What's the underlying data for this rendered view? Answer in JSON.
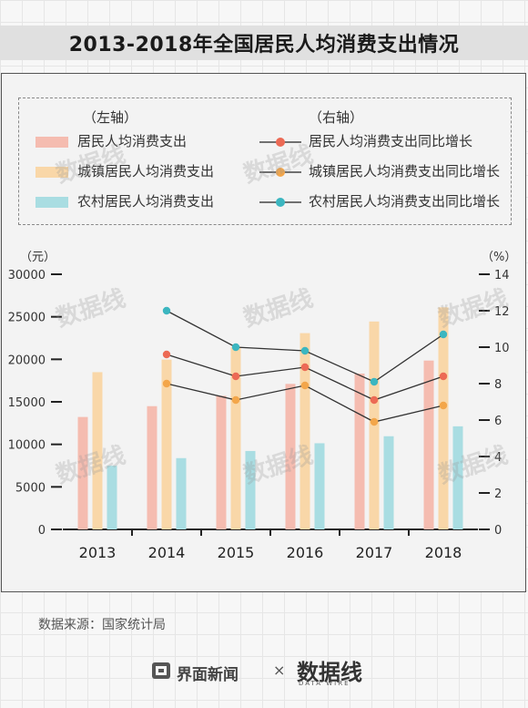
{
  "title": "2013-2018年全国居民人均消费支出情况",
  "legend": {
    "left_axis_label": "（左轴）",
    "right_axis_label": "（右轴）",
    "bar_items": [
      "居民人均消费支出",
      "城镇居民人均消费支出",
      "农村居民人均消费支出"
    ],
    "line_items": [
      "居民人均消费支出同比增长",
      "城镇居民人均消费支出同比增长",
      "农村居民人均消费支出同比增长"
    ]
  },
  "colors": {
    "bar_resident": "#f5bcb0",
    "bar_urban": "#f9d7a8",
    "bar_rural": "#a9dde2",
    "line_resident": "#ec6a55",
    "line_urban": "#f3a64a",
    "line_rural": "#3cb6c0"
  },
  "source": "数据来源：国家统计局",
  "footer": {
    "brand1": "界面新闻",
    "cross": "×",
    "brand2": "数据线",
    "brand2_sub": "DATA WIRE"
  },
  "watermark": "数据线",
  "chart_data": {
    "type": "bar",
    "categories": [
      "2013",
      "2014",
      "2015",
      "2016",
      "2017",
      "2018"
    ],
    "left_axis": {
      "unit_label": "（元）",
      "ylim": [
        0,
        30000
      ],
      "ticks": [
        0,
        5000,
        10000,
        15000,
        20000,
        25000,
        30000
      ]
    },
    "right_axis": {
      "unit_label": "（%）",
      "ylim": [
        0,
        14
      ],
      "ticks": [
        0,
        2,
        4,
        6,
        8,
        10,
        12,
        14
      ]
    },
    "series": [
      {
        "name": "居民人均消费支出",
        "axis": "left",
        "kind": "bar",
        "values": [
          13220,
          14491,
          15712,
          17111,
          18322,
          19853
        ]
      },
      {
        "name": "城镇居民人均消费支出",
        "axis": "left",
        "kind": "bar",
        "values": [
          18488,
          19968,
          21392,
          23079,
          24445,
          26112
        ]
      },
      {
        "name": "农村居民人均消费支出",
        "axis": "left",
        "kind": "bar",
        "values": [
          7485,
          8383,
          9223,
          10130,
          10955,
          12124
        ]
      },
      {
        "name": "居民人均消费支出同比增长",
        "axis": "right",
        "kind": "line",
        "values": [
          null,
          9.6,
          8.4,
          8.9,
          7.1,
          8.4
        ]
      },
      {
        "name": "城镇居民人均消费支出同比增长",
        "axis": "right",
        "kind": "line",
        "values": [
          null,
          8.0,
          7.1,
          7.9,
          5.9,
          6.8
        ]
      },
      {
        "name": "农村居民人均消费支出同比增长",
        "axis": "right",
        "kind": "line",
        "values": [
          null,
          12.0,
          10.0,
          9.8,
          8.1,
          10.7
        ]
      }
    ],
    "grid": false,
    "legend_position": "top"
  }
}
